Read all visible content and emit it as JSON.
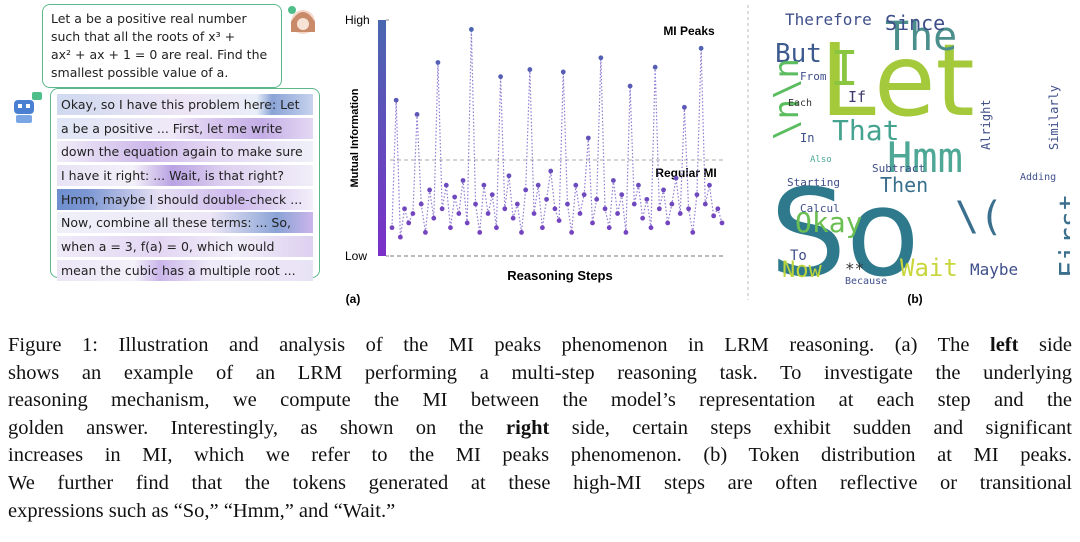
{
  "question": {
    "lines": [
      "Let a be a positive real number",
      "such that all the roots of x³ +",
      "ax² + ax + 1 = 0 are real. Find the",
      "smallest possible value of a."
    ]
  },
  "response": {
    "lines": [
      "Okay, so I have this problem here: Let",
      "a be a positive ... First, let me write",
      "down the equation again to make sure",
      "I have it right: ... Wait, is that right?",
      "Hmm, maybe I should double-check ...",
      "Now, combine all these terms: ... So,",
      "when a = 3, f(a) = 0, which would",
      "mean the cubic has a multiple root ..."
    ]
  },
  "chart_data": {
    "type": "line",
    "ylabel": "Mutual Information",
    "xlabel": "Reasoning Steps",
    "ylim": [
      0,
      1
    ],
    "yticks": [
      {
        "value": 0,
        "label": "Low"
      },
      {
        "value": 1,
        "label": "High"
      }
    ],
    "annotations": [
      "MI Peaks",
      "Regular MI"
    ],
    "color_low": "#7b3fc2",
    "color_high": "#4a67b0",
    "values": [
      0.12,
      0.66,
      0.08,
      0.2,
      0.14,
      0.18,
      0.6,
      0.22,
      0.1,
      0.28,
      0.16,
      0.82,
      0.2,
      0.3,
      0.12,
      0.25,
      0.18,
      0.32,
      0.14,
      0.96,
      0.22,
      0.1,
      0.3,
      0.18,
      0.26,
      0.12,
      0.76,
      0.2,
      0.34,
      0.16,
      0.22,
      0.1,
      0.28,
      0.79,
      0.18,
      0.3,
      0.12,
      0.24,
      0.36,
      0.2,
      0.15,
      0.78,
      0.22,
      0.1,
      0.3,
      0.18,
      0.26,
      0.5,
      0.14,
      0.24,
      0.84,
      0.2,
      0.12,
      0.32,
      0.18,
      0.26,
      0.1,
      0.72,
      0.22,
      0.3,
      0.16,
      0.24,
      0.12,
      0.8,
      0.2,
      0.28,
      0.14,
      0.22,
      0.33,
      0.18,
      0.63,
      0.2,
      0.1,
      0.26,
      0.88,
      0.22,
      0.3,
      0.17,
      0.2,
      0.14
    ],
    "label": "(a)"
  },
  "wordcloud": {
    "words": [
      "Let",
      "So",
      "Hmm",
      "I",
      "The",
      "Therefore",
      "Since",
      "But",
      "That",
      "Then",
      "Okay",
      "First",
      "Wait",
      "Now",
      "Maybe",
      "\\n\\n",
      "If",
      "To",
      "From",
      "Each",
      "In",
      "Because",
      "Similarly",
      "Alright",
      "Subtract",
      "Starting",
      "Adding",
      "Calcul",
      "Also",
      "**",
      "\\("
    ],
    "label": "(b)"
  },
  "caption": {
    "lines": [
      [
        "Figure 1: Illustration and analysis of the MI peaks phenomenon in LRM reasoning. (a) The ",
        {
          "text": "left",
          "bold": true
        },
        " side"
      ],
      [
        "shows an example of an LRM performing a multi-step reasoning task. To investigate the underlying"
      ],
      [
        "reasoning mechanism, we compute the MI between the model’s representation at each step and the"
      ],
      [
        "golden answer. Interestingly, as shown on the ",
        {
          "text": "right",
          "bold": true
        },
        " side, certain steps exhibit sudden and significant"
      ],
      [
        "increases in MI, which we refer to the MI peaks phenomenon. (b) Token distribution at MI peaks."
      ],
      [
        "We further find that the tokens generated at these high-MI steps are often reflective or transitional"
      ],
      [
        "expressions such as “So,” “Hmm,” and “Wait.”"
      ]
    ]
  }
}
